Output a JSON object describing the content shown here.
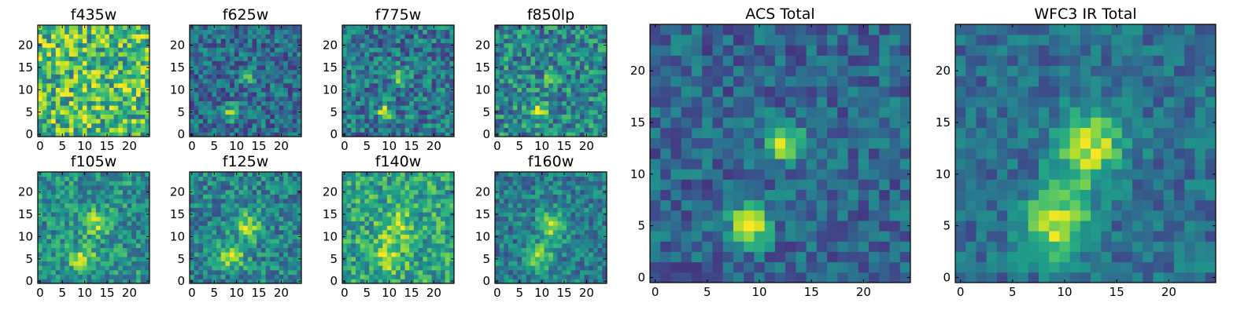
{
  "figure": {
    "background": "#ffffff"
  },
  "colormap": {
    "name": "viridis",
    "stops": [
      "#440154",
      "#482878",
      "#3e4989",
      "#31688e",
      "#26828e",
      "#1f9e89",
      "#35b779",
      "#6ece58",
      "#b5de2b",
      "#fde725"
    ]
  },
  "chart_data": [
    {
      "type": "heatmap",
      "title": "f435w",
      "grid": false,
      "cols": 25,
      "rows": 25,
      "x": [
        0,
        24
      ],
      "y": [
        0,
        24
      ],
      "xticks": [
        0,
        5,
        10,
        15,
        20
      ],
      "yticks": [
        0,
        5,
        10,
        15,
        20
      ],
      "seed": 11,
      "noise": 0.33,
      "base": 0.68,
      "sources": [
        {
          "x": 9,
          "y": 5,
          "sigma": 2.2,
          "amp": 0.12
        },
        {
          "x": 12.5,
          "y": 12.5,
          "sigma": 2.0,
          "amp": 0.06
        }
      ]
    },
    {
      "type": "heatmap",
      "title": "f625w",
      "grid": false,
      "cols": 25,
      "rows": 25,
      "x": [
        0,
        24
      ],
      "y": [
        0,
        24
      ],
      "xticks": [
        0,
        5,
        10,
        15,
        20
      ],
      "yticks": [
        0,
        5,
        10,
        15,
        20
      ],
      "seed": 23,
      "noise": 0.22,
      "base": 0.36,
      "sources": [
        {
          "x": 9,
          "y": 5,
          "sigma": 1.1,
          "amp": 0.55
        },
        {
          "x": 12.5,
          "y": 13,
          "sigma": 1.1,
          "amp": 0.42
        }
      ]
    },
    {
      "type": "heatmap",
      "title": "f775w",
      "grid": false,
      "cols": 25,
      "rows": 25,
      "x": [
        0,
        24
      ],
      "y": [
        0,
        24
      ],
      "xticks": [
        0,
        5,
        10,
        15,
        20
      ],
      "yticks": [
        0,
        5,
        10,
        15,
        20
      ],
      "seed": 37,
      "noise": 0.24,
      "base": 0.4,
      "sources": [
        {
          "x": 9,
          "y": 5,
          "sigma": 1.1,
          "amp": 0.5
        },
        {
          "x": 12.5,
          "y": 13,
          "sigma": 1.1,
          "amp": 0.45
        }
      ]
    },
    {
      "type": "heatmap",
      "title": "f850lp",
      "grid": false,
      "cols": 25,
      "rows": 25,
      "x": [
        0,
        24
      ],
      "y": [
        0,
        24
      ],
      "xticks": [
        0,
        5,
        10,
        15,
        20
      ],
      "yticks": [
        0,
        5,
        10,
        15,
        20
      ],
      "seed": 41,
      "noise": 0.26,
      "base": 0.46,
      "sources": [
        {
          "x": 9,
          "y": 5,
          "sigma": 1.4,
          "amp": 0.45
        },
        {
          "x": 12.5,
          "y": 13,
          "sigma": 1.2,
          "amp": 0.35
        }
      ]
    },
    {
      "type": "heatmap",
      "title": "f105w",
      "grid": false,
      "cols": 25,
      "rows": 25,
      "x": [
        0,
        24
      ],
      "y": [
        0,
        24
      ],
      "xticks": [
        0,
        5,
        10,
        15,
        20
      ],
      "yticks": [
        0,
        5,
        10,
        15,
        20
      ],
      "seed": 53,
      "noise": 0.22,
      "base": 0.5,
      "sources": [
        {
          "x": 9.5,
          "y": 5,
          "sigma": 2.0,
          "amp": 0.4
        },
        {
          "x": 12.5,
          "y": 13,
          "sigma": 2.0,
          "amp": 0.35
        }
      ]
    },
    {
      "type": "heatmap",
      "title": "f125w",
      "grid": false,
      "cols": 25,
      "rows": 25,
      "x": [
        0,
        24
      ],
      "y": [
        0,
        24
      ],
      "xticks": [
        0,
        5,
        10,
        15,
        20
      ],
      "yticks": [
        0,
        5,
        10,
        15,
        20
      ],
      "seed": 67,
      "noise": 0.22,
      "base": 0.45,
      "sources": [
        {
          "x": 9,
          "y": 5.5,
          "sigma": 2.0,
          "amp": 0.4
        },
        {
          "x": 12.5,
          "y": 12.5,
          "sigma": 2.2,
          "amp": 0.38
        }
      ]
    },
    {
      "type": "heatmap",
      "title": "f140w",
      "grid": false,
      "cols": 25,
      "rows": 25,
      "x": [
        0,
        24
      ],
      "y": [
        0,
        24
      ],
      "xticks": [
        0,
        5,
        10,
        15,
        20
      ],
      "yticks": [
        0,
        5,
        10,
        15,
        20
      ],
      "seed": 79,
      "noise": 0.24,
      "base": 0.58,
      "sources": [
        {
          "x": 9.5,
          "y": 6,
          "sigma": 2.5,
          "amp": 0.3
        },
        {
          "x": 12,
          "y": 12.5,
          "sigma": 2.5,
          "amp": 0.25
        }
      ]
    },
    {
      "type": "heatmap",
      "title": "f160w",
      "grid": false,
      "cols": 25,
      "rows": 25,
      "x": [
        0,
        24
      ],
      "y": [
        0,
        24
      ],
      "xticks": [
        0,
        5,
        10,
        15,
        20
      ],
      "yticks": [
        0,
        5,
        10,
        15,
        20
      ],
      "seed": 89,
      "noise": 0.2,
      "base": 0.42,
      "sources": [
        {
          "x": 9.5,
          "y": 5.5,
          "sigma": 2.0,
          "amp": 0.42
        },
        {
          "x": 12.5,
          "y": 12.5,
          "sigma": 2.2,
          "amp": 0.42
        }
      ]
    },
    {
      "type": "heatmap",
      "title": "ACS Total",
      "grid": false,
      "cols": 25,
      "rows": 25,
      "x": [
        0,
        24
      ],
      "y": [
        0,
        24
      ],
      "xticks": [
        0,
        5,
        10,
        15,
        20
      ],
      "yticks": [
        0,
        5,
        10,
        15,
        20
      ],
      "seed": 97,
      "noise": 0.17,
      "base": 0.33,
      "sources": [
        {
          "x": 9,
          "y": 5,
          "sigma": 1.3,
          "amp": 0.62
        },
        {
          "x": 12.5,
          "y": 13,
          "sigma": 1.2,
          "amp": 0.58
        }
      ]
    },
    {
      "type": "heatmap",
      "title": "WFC3 IR Total",
      "grid": false,
      "cols": 25,
      "rows": 25,
      "x": [
        0,
        24
      ],
      "y": [
        0,
        24
      ],
      "xticks": [
        0,
        5,
        10,
        15,
        20
      ],
      "yticks": [
        0,
        5,
        10,
        15,
        20
      ],
      "seed": 103,
      "noise": 0.15,
      "base": 0.36,
      "sources": [
        {
          "x": 9,
          "y": 5,
          "sigma": 2.2,
          "amp": 0.55
        },
        {
          "x": 12.5,
          "y": 13,
          "sigma": 2.2,
          "amp": 0.55
        },
        {
          "x": 11,
          "y": 9,
          "sigma": 1.8,
          "amp": 0.2
        }
      ]
    }
  ]
}
